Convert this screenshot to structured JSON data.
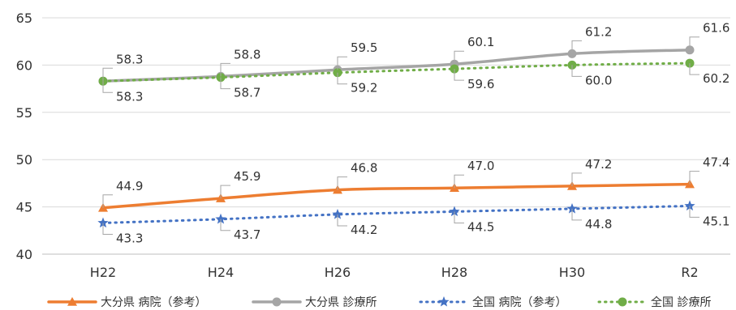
{
  "chart_data": {
    "type": "line",
    "title": "",
    "xlabel": "",
    "ylabel": "",
    "categories": [
      "H22",
      "H24",
      "H26",
      "H28",
      "H30",
      "R2"
    ],
    "ylim": [
      40,
      65
    ],
    "yticks": [
      40,
      45,
      50,
      55,
      60,
      65
    ],
    "grid": true,
    "legend_position": "bottom",
    "series": [
      {
        "name": "大分県 病院（参考）",
        "values": [
          44.9,
          45.9,
          46.8,
          47.0,
          47.2,
          47.4
        ],
        "labels": [
          "44.9",
          "45.9",
          "46.8",
          "47.0",
          "47.2",
          "47.4"
        ],
        "color": "#ED7D31",
        "line_style": "solid",
        "marker": "triangle"
      },
      {
        "name": "大分県 診療所",
        "values": [
          58.3,
          58.8,
          59.5,
          60.1,
          61.2,
          61.6
        ],
        "labels": [
          "58.3",
          "58.8",
          "59.5",
          "60.1",
          "61.2",
          "61.6"
        ],
        "color": "#A5A5A5",
        "line_style": "solid",
        "marker": "circle"
      },
      {
        "name": "全国 病院（参考）",
        "values": [
          43.3,
          43.7,
          44.2,
          44.5,
          44.8,
          45.1
        ],
        "labels": [
          "43.3",
          "43.7",
          "44.2",
          "44.5",
          "44.8",
          "45.1"
        ],
        "color": "#4472C4",
        "line_style": "dotted",
        "marker": "star"
      },
      {
        "name": "全国 診療所",
        "values": [
          58.3,
          58.7,
          59.2,
          59.6,
          60.0,
          60.2
        ],
        "labels": [
          "58.3",
          "58.7",
          "59.2",
          "59.6",
          "60.0",
          "60.2"
        ],
        "color": "#70AD47",
        "line_style": "dotted",
        "marker": "circle"
      }
    ]
  }
}
